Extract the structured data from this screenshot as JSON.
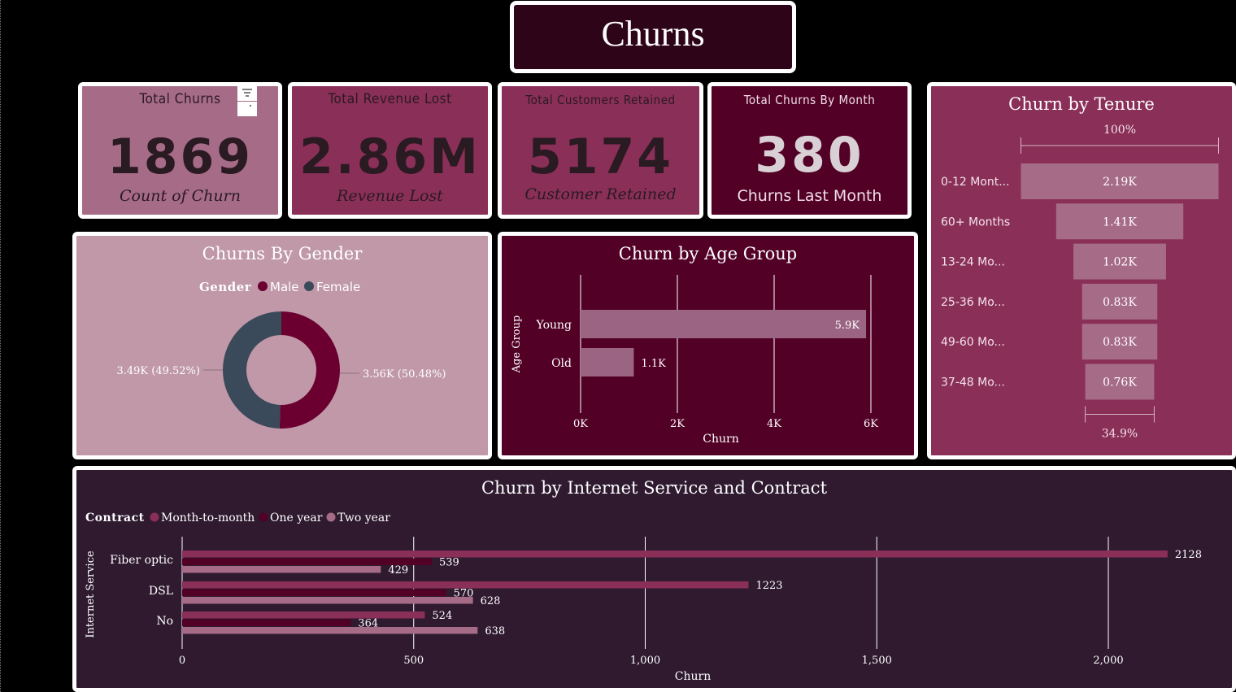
{
  "title": "Churns",
  "cards": {
    "total_churns": {
      "label": "Total Churns",
      "value": "1869",
      "sub": "Count of Churn"
    },
    "revenue_lost": {
      "label": "Total Revenue Lost",
      "value": "2.86M",
      "sub": "Revenue Lost"
    },
    "retained": {
      "label": "Total Customers Retained",
      "value": "5174",
      "sub": "Customer Retained"
    },
    "month": {
      "label": "Total Churns By Month",
      "value": "380",
      "sub": "Churns Last Month"
    }
  },
  "colors": {
    "month_to_month": "#8a2f58",
    "one_year": "#520026",
    "two_year": "#a66b87",
    "male": "#6b0030",
    "female": "#3b4a5a"
  },
  "chart_data": [
    {
      "id": "tenure",
      "type": "funnel",
      "title": "Churn by Tenure",
      "top_percent": "100%",
      "bottom_percent": "34.9%",
      "categories": [
        "0-12 Mont...",
        "60+ Months",
        "13-24 Mo...",
        "25-36 Mo...",
        "49-60 Mo...",
        "37-48 Mo..."
      ],
      "values": [
        2186,
        1407,
        1024,
        832,
        832,
        763
      ],
      "labels": [
        "2.19K",
        "1.41K",
        "1.02K",
        "0.83K",
        "0.83K",
        "0.76K"
      ]
    },
    {
      "id": "gender",
      "type": "pie",
      "title": "Churns By Gender",
      "legend_title": "Gender",
      "legend_position": "top",
      "categories": [
        "Male",
        "Female"
      ],
      "values": [
        3555,
        3488
      ],
      "labels": [
        "3.56K (50.48%)",
        "3.49K (49.52%)"
      ]
    },
    {
      "id": "age",
      "type": "bar",
      "title": "Churn by Age Group",
      "xlabel": "Churn",
      "ylabel": "Age Group",
      "categories": [
        "Young",
        "Old"
      ],
      "values": [
        5900,
        1100
      ],
      "labels": [
        "5.9K",
        "1.1K"
      ],
      "xlim": [
        0,
        6000
      ],
      "ticks": [
        "0K",
        "2K",
        "4K",
        "6K"
      ],
      "grid": true
    },
    {
      "id": "internet",
      "type": "bar",
      "title": "Churn by Internet Service and Contract",
      "xlabel": "Churn",
      "ylabel": "Internet Service",
      "legend_title": "Contract",
      "legend_position": "top-left",
      "categories": [
        "Fiber optic",
        "DSL",
        "No"
      ],
      "series": [
        {
          "name": "Month-to-month",
          "values": [
            2128,
            1223,
            524
          ]
        },
        {
          "name": "One year",
          "values": [
            539,
            570,
            364
          ]
        },
        {
          "name": "Two year",
          "values": [
            429,
            628,
            638
          ]
        }
      ],
      "xlim": [
        0,
        2200
      ],
      "ticks": [
        "0",
        "500",
        "1,000",
        "1,500",
        "2,000"
      ],
      "grid": true
    }
  ]
}
